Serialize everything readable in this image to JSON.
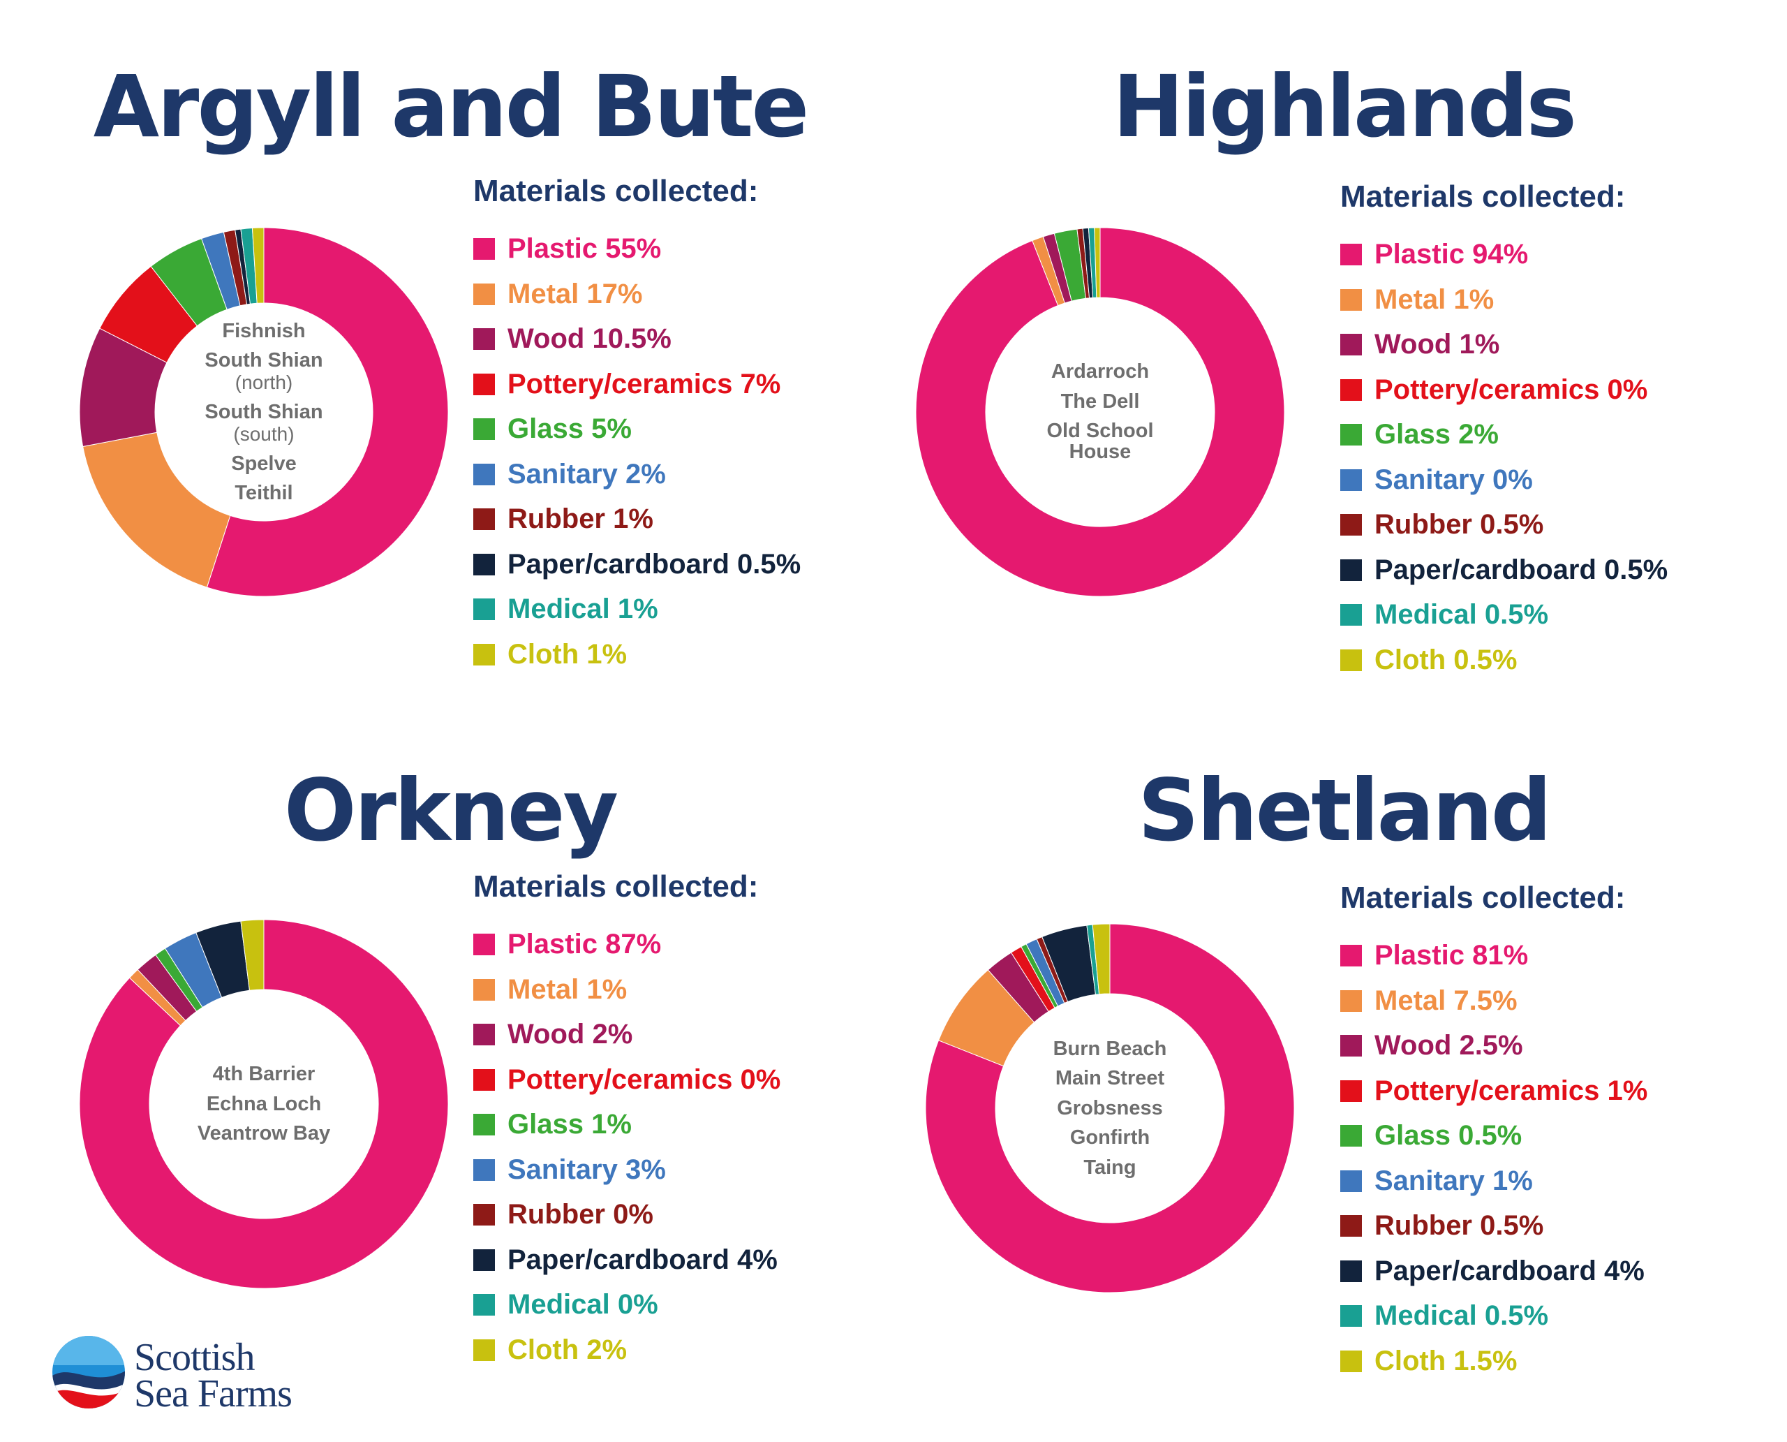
{
  "colors": {
    "title": "#1e3869",
    "centre_text": "#6e6e6e",
    "Plastic": "#e5196f",
    "Metal": "#f18f44",
    "Wood": "#a0195a",
    "Pottery/ceramics": "#e3101a",
    "Glass": "#3aa935",
    "Sanitary": "#3f77bd",
    "Rubber": "#8e1a17",
    "Paper/cardboard": "#12233c",
    "Medical": "#19a093",
    "Cloth": "#c8c10f"
  },
  "legend_heading": "Materials collected:",
  "logo": {
    "line1": "Scottish",
    "line2": "Sea Farms",
    "icon": "scottish-sea-farms-logo"
  },
  "chart_data": [
    {
      "type": "pie",
      "title": "Argyll and Bute",
      "categories": [
        "Plastic",
        "Metal",
        "Wood",
        "Pottery/ceramics",
        "Glass",
        "Sanitary",
        "Rubber",
        "Paper/cardboard",
        "Medical",
        "Cloth"
      ],
      "values": [
        55,
        17,
        10.5,
        7,
        5,
        2,
        1,
        0.5,
        1,
        1
      ],
      "legend_labels": [
        "Plastic 55%",
        "Metal 17%",
        "Wood 10.5%",
        "Pottery/ceramics 7%",
        "Glass 5%",
        "Sanitary 2%",
        "Rubber 1%",
        "Paper/cardboard 0.5%",
        "Medical 1%",
        "Cloth 1%"
      ],
      "sites": [
        {
          "name": "Fishnish"
        },
        {
          "name": "South Shian",
          "sub": "(north)"
        },
        {
          "name": "South Shian",
          "sub": "(south)"
        },
        {
          "name": "Spelve"
        },
        {
          "name": "Teithil"
        }
      ]
    },
    {
      "type": "pie",
      "title": "Highlands",
      "categories": [
        "Plastic",
        "Metal",
        "Wood",
        "Pottery/ceramics",
        "Glass",
        "Sanitary",
        "Rubber",
        "Paper/cardboard",
        "Medical",
        "Cloth"
      ],
      "values": [
        94,
        1,
        1,
        0,
        2,
        0,
        0.5,
        0.5,
        0.5,
        0.5
      ],
      "legend_labels": [
        "Plastic 94%",
        "Metal 1%",
        "Wood 1%",
        "Pottery/ceramics 0%",
        "Glass 2%",
        "Sanitary 0%",
        "Rubber 0.5%",
        "Paper/cardboard 0.5%",
        "Medical 0.5%",
        "Cloth 0.5%"
      ],
      "sites": [
        {
          "name": "Ardarroch"
        },
        {
          "name": "The Dell"
        },
        {
          "name": "Old School House"
        }
      ]
    },
    {
      "type": "pie",
      "title": "Orkney",
      "categories": [
        "Plastic",
        "Metal",
        "Wood",
        "Pottery/ceramics",
        "Glass",
        "Sanitary",
        "Rubber",
        "Paper/cardboard",
        "Medical",
        "Cloth"
      ],
      "values": [
        87,
        1,
        2,
        0,
        1,
        3,
        0,
        4,
        0,
        2
      ],
      "legend_labels": [
        "Plastic 87%",
        "Metal 1%",
        "Wood 2%",
        "Pottery/ceramics 0%",
        "Glass 1%",
        "Sanitary 3%",
        "Rubber 0%",
        "Paper/cardboard 4%",
        "Medical 0%",
        "Cloth 2%"
      ],
      "sites": [
        {
          "name": "4th Barrier"
        },
        {
          "name": "Echna Loch"
        },
        {
          "name": "Veantrow Bay"
        }
      ]
    },
    {
      "type": "pie",
      "title": "Shetland",
      "categories": [
        "Plastic",
        "Metal",
        "Wood",
        "Pottery/ceramics",
        "Glass",
        "Sanitary",
        "Rubber",
        "Paper/cardboard",
        "Medical",
        "Cloth"
      ],
      "values": [
        81,
        7.5,
        2.5,
        1,
        0.5,
        1,
        0.5,
        4,
        0.5,
        1.5
      ],
      "legend_labels": [
        "Plastic 81%",
        "Metal 7.5%",
        "Wood 2.5%",
        "Pottery/ceramics 1%",
        "Glass 0.5%",
        "Sanitary 1%",
        "Rubber 0.5%",
        "Paper/cardboard 4%",
        "Medical 0.5%",
        "Cloth 1.5%"
      ],
      "sites": [
        {
          "name": "Burn Beach"
        },
        {
          "name": "Main Street"
        },
        {
          "name": "Grobsness"
        },
        {
          "name": "Gonfirth"
        },
        {
          "name": "Taing"
        }
      ]
    }
  ]
}
